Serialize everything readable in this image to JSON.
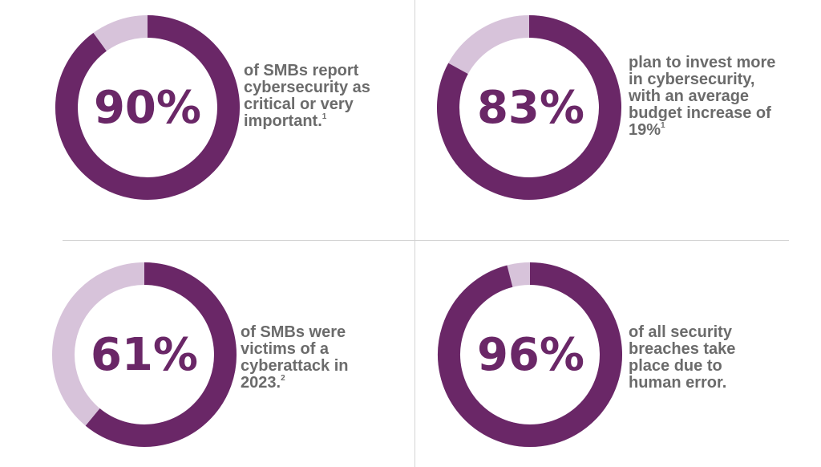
{
  "colors": {
    "accent": "#6a2767",
    "track": "#d7c3da",
    "caption_text": "#6b6b6b",
    "divider": "#d4d4d4"
  },
  "chart_data": [
    {
      "type": "pie",
      "style": "donut",
      "value": 90,
      "remainder": 10,
      "label": "90%",
      "caption": "of SMBs report\ncybersecurity as\ncritical or very\nimportant.",
      "footnote": "1"
    },
    {
      "type": "pie",
      "style": "donut",
      "value": 83,
      "remainder": 17,
      "label": "83%",
      "caption": "plan to invest more\nin cybersecurity,\nwith an average\nbudget increase of\n19%",
      "footnote": "1"
    },
    {
      "type": "pie",
      "style": "donut",
      "value": 61,
      "remainder": 39,
      "label": "61%",
      "caption": "of SMBs were\nvictims of a\ncyberattack in\n2023.",
      "footnote": "2"
    },
    {
      "type": "pie",
      "style": "donut",
      "value": 96,
      "remainder": 4,
      "label": "96%",
      "caption": "of all security\nbreaches take\nplace due to\nhuman error.",
      "footnote": ""
    }
  ]
}
